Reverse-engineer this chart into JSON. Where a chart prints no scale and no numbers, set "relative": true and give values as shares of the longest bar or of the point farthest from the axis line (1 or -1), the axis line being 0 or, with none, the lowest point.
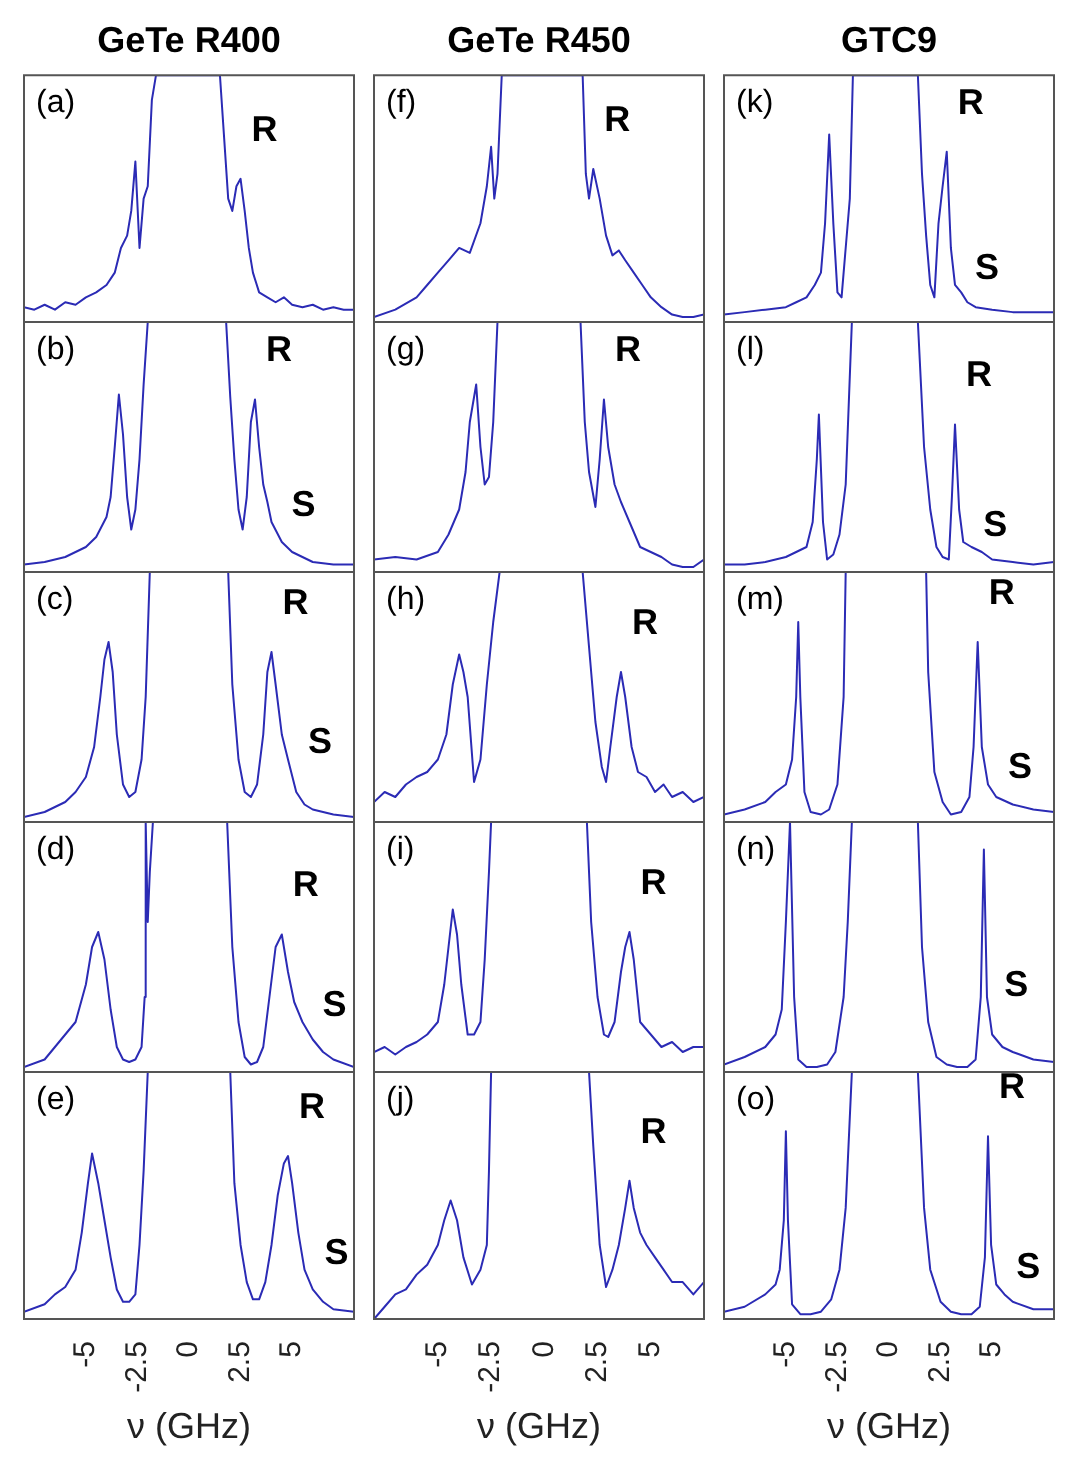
{
  "chart_data": [
    {
      "type": "line",
      "title": "GeTe R400",
      "relative": true,
      "tick_labels": false,
      "color": "#2b2bb5",
      "xlim": [
        -8,
        8
      ],
      "xticks": [
        -5,
        -2.5,
        0,
        2.5,
        5
      ],
      "x": [
        -8,
        -7.5,
        -7,
        -6.5,
        -6,
        -5.5,
        -5,
        -4.5,
        -4,
        -3.6,
        -3.3,
        -3,
        -2.8,
        -2.6,
        -2.4,
        -2.2,
        -2,
        -1.8,
        -1.6,
        1.5,
        1.7,
        1.9,
        2.1,
        2.3,
        2.5,
        2.7,
        2.9,
        3.1,
        3.4,
        3.8,
        4.2,
        4.6,
        5,
        5.5,
        6,
        6.5,
        7,
        7.5,
        8
      ],
      "values": [
        0.06,
        0.05,
        0.07,
        0.05,
        0.08,
        0.07,
        0.1,
        0.12,
        0.15,
        0.2,
        0.3,
        0.35,
        0.45,
        0.65,
        0.3,
        0.5,
        0.55,
        0.9,
        1,
        1,
        0.75,
        0.5,
        0.45,
        0.55,
        0.58,
        0.45,
        0.3,
        0.2,
        0.12,
        0.1,
        0.08,
        0.1,
        0.07,
        0.06,
        0.07,
        0.05,
        0.06,
        0.05,
        0.05
      ],
      "annotations": [
        "(a)",
        {
          "text": "R",
          "x": 2.5,
          "y": 0.58
        }
      ]
    },
    {
      "type": "line",
      "relative": true,
      "tick_labels": false,
      "color": "#2b2bb5",
      "xlim": [
        -8,
        8
      ],
      "xticks": [
        -5,
        -2.5,
        0,
        2.5,
        5
      ],
      "x": [
        -8,
        -7,
        -6,
        -5.5,
        -5,
        -4.5,
        -4,
        -3.8,
        -3.6,
        -3.4,
        -3.2,
        -3,
        -2.8,
        -2.6,
        -2.4,
        -2.2,
        -2,
        1.8,
        2,
        2.2,
        2.4,
        2.6,
        2.8,
        3,
        3.2,
        3.4,
        3.6,
        3.8,
        4,
        4.5,
        5,
        5.5,
        6,
        7,
        8
      ],
      "values": [
        0.03,
        0.04,
        0.06,
        0.08,
        0.1,
        0.14,
        0.22,
        0.3,
        0.5,
        0.71,
        0.55,
        0.3,
        0.17,
        0.25,
        0.45,
        0.75,
        1,
        1,
        0.7,
        0.45,
        0.25,
        0.17,
        0.3,
        0.6,
        0.69,
        0.5,
        0.35,
        0.28,
        0.2,
        0.12,
        0.08,
        0.06,
        0.04,
        0.03,
        0.03
      ],
      "annotations": [
        "(b)",
        {
          "text": "R",
          "x": 3.2,
          "y": 0.69
        },
        {
          "text": "S",
          "x": 4,
          "y": 0.2
        }
      ]
    },
    {
      "type": "line",
      "relative": true,
      "tick_labels": false,
      "color": "#2b2bb5",
      "xlim": [
        -8,
        8
      ],
      "xticks": [
        -5,
        -2.5,
        0,
        2.5,
        5
      ],
      "x": [
        -8,
        -7,
        -6,
        -5.5,
        -5,
        -4.6,
        -4.3,
        -4.1,
        -3.9,
        -3.7,
        -3.5,
        -3.2,
        -2.9,
        -2.6,
        -2.3,
        -2.1,
        -1.9,
        1.9,
        2.1,
        2.4,
        2.7,
        3,
        3.3,
        3.6,
        3.8,
        4,
        4.2,
        4.5,
        4.8,
        5.2,
        5.6,
        6,
        7,
        8
      ],
      "values": [
        0.02,
        0.04,
        0.08,
        0.12,
        0.18,
        0.3,
        0.5,
        0.65,
        0.72,
        0.6,
        0.35,
        0.15,
        0.1,
        0.12,
        0.25,
        0.5,
        1,
        1,
        0.55,
        0.25,
        0.12,
        0.1,
        0.15,
        0.35,
        0.6,
        0.68,
        0.55,
        0.35,
        0.25,
        0.12,
        0.07,
        0.05,
        0.03,
        0.02
      ],
      "annotations": [
        "(c)",
        {
          "text": "R",
          "x": 4,
          "y": 0.68
        },
        {
          "text": "S",
          "x": 4.8,
          "y": 0.25
        }
      ]
    },
    {
      "type": "line",
      "relative": true,
      "tick_labels": false,
      "color": "#2b2bb5",
      "xlim": [
        -8,
        8
      ],
      "xticks": [
        -5,
        -2.5,
        0,
        2.5,
        5
      ],
      "x": [
        -8,
        -7,
        -6.5,
        -6,
        -5.5,
        -5,
        -4.7,
        -4.4,
        -4.1,
        -3.8,
        -3.5,
        -3.2,
        -2.9,
        -2.6,
        -2.3,
        -2.15,
        -2.1,
        -2,
        -1.9,
        -1.75,
        1.85,
        2.1,
        2.4,
        2.7,
        3,
        3.3,
        3.6,
        3.9,
        4.2,
        4.5,
        4.8,
        5.1,
        5.5,
        6,
        6.5,
        7,
        8
      ],
      "values": [
        0.02,
        0.05,
        0.1,
        0.15,
        0.2,
        0.35,
        0.5,
        0.56,
        0.45,
        0.25,
        0.1,
        0.05,
        0.04,
        0.05,
        0.1,
        0.3,
        1,
        0.6,
        0.8,
        1,
        1,
        0.5,
        0.2,
        0.06,
        0.03,
        0.04,
        0.1,
        0.3,
        0.5,
        0.55,
        0.4,
        0.28,
        0.2,
        0.13,
        0.08,
        0.05,
        0.02
      ],
      "annotations": [
        "(d)",
        {
          "text": "R",
          "x": 4.5,
          "y": 0.55
        },
        {
          "text": "S",
          "x": 5.5,
          "y": 0.2
        }
      ]
    },
    {
      "type": "line",
      "relative": true,
      "tick_labels": "x",
      "xlabel": "ν (GHz)",
      "color": "#2b2bb5",
      "xlim": [
        -8,
        8
      ],
      "xticks": [
        -5,
        -2.5,
        0,
        2.5,
        5
      ],
      "x": [
        -8,
        -7,
        -6.5,
        -6,
        -5.5,
        -5.2,
        -4.9,
        -4.7,
        -4.4,
        -4.1,
        -3.8,
        -3.5,
        -3.2,
        -2.9,
        -2.6,
        -2.4,
        -2.2,
        -2,
        2,
        2.2,
        2.5,
        2.8,
        3.1,
        3.4,
        3.7,
        4,
        4.3,
        4.6,
        4.8,
        5,
        5.3,
        5.6,
        6,
        6.5,
        7,
        8
      ],
      "values": [
        0.03,
        0.06,
        0.1,
        0.13,
        0.2,
        0.35,
        0.55,
        0.67,
        0.55,
        0.4,
        0.25,
        0.12,
        0.07,
        0.07,
        0.1,
        0.3,
        0.6,
        1,
        1,
        0.55,
        0.3,
        0.15,
        0.08,
        0.08,
        0.15,
        0.3,
        0.5,
        0.63,
        0.66,
        0.55,
        0.35,
        0.2,
        0.12,
        0.07,
        0.04,
        0.03
      ],
      "annotations": [
        "(e)",
        {
          "text": "R",
          "x": 4.8,
          "y": 0.66
        },
        {
          "text": "S",
          "x": 5.6,
          "y": 0.2
        }
      ]
    },
    {
      "type": "line",
      "title": "GeTe R450",
      "relative": true,
      "tick_labels": false,
      "color": "#2b2bb5",
      "xlim": [
        -8,
        7.5
      ],
      "xticks": [
        -5,
        -2.5,
        0,
        2.5,
        5
      ],
      "x": [
        -8,
        -7,
        -6,
        -5.5,
        -5,
        -4.5,
        -4,
        -3.5,
        -3,
        -2.7,
        -2.5,
        -2.35,
        -2.2,
        -2,
        1.8,
        1.95,
        2.1,
        2.3,
        2.6,
        2.9,
        3.2,
        3.5,
        3.8,
        4.2,
        4.6,
        5,
        5.5,
        6,
        6.5,
        7,
        7.5
      ],
      "values": [
        0.02,
        0.05,
        0.1,
        0.15,
        0.2,
        0.25,
        0.3,
        0.28,
        0.4,
        0.55,
        0.71,
        0.5,
        0.6,
        1,
        1,
        0.6,
        0.5,
        0.62,
        0.5,
        0.35,
        0.27,
        0.29,
        0.25,
        0.2,
        0.15,
        0.1,
        0.06,
        0.03,
        0.02,
        0.02,
        0.03
      ],
      "annotations": [
        "(f)",
        {
          "text": "R",
          "x": 2.3,
          "y": 0.62
        }
      ]
    },
    {
      "type": "line",
      "relative": true,
      "tick_labels": false,
      "color": "#2b2bb5",
      "xlim": [
        -8,
        7.5
      ],
      "xticks": [
        -5,
        -2.5,
        0,
        2.5,
        5
      ],
      "x": [
        -8,
        -7,
        -6,
        -5,
        -4.5,
        -4,
        -3.7,
        -3.5,
        -3.2,
        -3,
        -2.8,
        -2.6,
        -2.4,
        -2.2,
        1.7,
        1.9,
        2.1,
        2.4,
        2.6,
        2.8,
        3,
        3.3,
        3.6,
        4,
        4.5,
        5,
        5.5,
        6,
        6.5,
        7,
        7.5
      ],
      "values": [
        0.05,
        0.06,
        0.05,
        0.08,
        0.15,
        0.25,
        0.4,
        0.6,
        0.75,
        0.5,
        0.35,
        0.38,
        0.6,
        1,
        1,
        0.6,
        0.4,
        0.26,
        0.45,
        0.69,
        0.5,
        0.35,
        0.28,
        0.2,
        0.1,
        0.08,
        0.06,
        0.03,
        0.02,
        0.02,
        0.05
      ],
      "annotations": [
        "(g)",
        {
          "text": "R",
          "x": 2.8,
          "y": 0.69
        }
      ]
    },
    {
      "type": "line",
      "relative": true,
      "tick_labels": false,
      "color": "#2b2bb5",
      "xlim": [
        -8,
        7.5
      ],
      "xticks": [
        -5,
        -2.5,
        0,
        2.5,
        5
      ],
      "x": [
        -8,
        -7.5,
        -7,
        -6.5,
        -6,
        -5.5,
        -5,
        -4.6,
        -4.3,
        -4,
        -3.8,
        -3.6,
        -3.3,
        -3,
        -2.7,
        -2.4,
        -2.1,
        1.8,
        2.1,
        2.4,
        2.7,
        2.9,
        3.1,
        3.4,
        3.6,
        3.8,
        4.1,
        4.4,
        4.8,
        5.2,
        5.6,
        6,
        6.5,
        7,
        7.5
      ],
      "values": [
        0.08,
        0.12,
        0.1,
        0.15,
        0.18,
        0.2,
        0.25,
        0.35,
        0.55,
        0.67,
        0.6,
        0.5,
        0.16,
        0.25,
        0.55,
        0.8,
        1,
        1,
        0.7,
        0.4,
        0.22,
        0.16,
        0.3,
        0.5,
        0.6,
        0.5,
        0.3,
        0.2,
        0.18,
        0.12,
        0.15,
        0.1,
        0.12,
        0.08,
        0.1
      ],
      "annotations": [
        "(h)",
        {
          "text": "R",
          "x": 3.6,
          "y": 0.6
        }
      ]
    },
    {
      "type": "line",
      "relative": true,
      "tick_labels": false,
      "color": "#2b2bb5",
      "xlim": [
        -8,
        7.5
      ],
      "xticks": [
        -5,
        -2.5,
        0,
        2.5,
        5
      ],
      "x": [
        -8,
        -7.5,
        -7,
        -6.5,
        -6,
        -5.5,
        -5,
        -4.7,
        -4.5,
        -4.3,
        -4.1,
        -3.9,
        -3.6,
        -3.3,
        -3,
        -2.8,
        -2.6,
        -2.5,
        2,
        2.2,
        2.5,
        2.8,
        3,
        3.3,
        3.6,
        3.8,
        4,
        4.2,
        4.5,
        5,
        5.5,
        6,
        6.5,
        7,
        7.5
      ],
      "values": [
        0.08,
        0.1,
        0.07,
        0.1,
        0.12,
        0.15,
        0.2,
        0.35,
        0.5,
        0.65,
        0.55,
        0.35,
        0.15,
        0.15,
        0.2,
        0.45,
        0.8,
        1,
        1,
        0.6,
        0.3,
        0.15,
        0.14,
        0.2,
        0.4,
        0.5,
        0.56,
        0.45,
        0.2,
        0.15,
        0.1,
        0.12,
        0.08,
        0.1,
        0.1
      ],
      "annotations": [
        "(i)",
        {
          "text": "R",
          "x": 4,
          "y": 0.56
        }
      ]
    },
    {
      "type": "line",
      "relative": true,
      "tick_labels": "x",
      "xlabel": "ν (GHz)",
      "color": "#2b2bb5",
      "xlim": [
        -8,
        7.5
      ],
      "xticks": [
        -5,
        -2.5,
        0,
        2.5,
        5
      ],
      "x": [
        -8,
        -7.5,
        -7,
        -6.5,
        -6,
        -5.5,
        -5,
        -4.7,
        -4.4,
        -4.1,
        -3.8,
        -3.4,
        -3,
        -2.7,
        -2.6,
        -2.5,
        2.1,
        2.3,
        2.6,
        2.9,
        3.2,
        3.5,
        3.8,
        4,
        4.2,
        4.5,
        4.8,
        5.2,
        5.6,
        6,
        6.5,
        7,
        7.5
      ],
      "values": [
        0,
        0.05,
        0.1,
        0.12,
        0.18,
        0.22,
        0.3,
        0.4,
        0.48,
        0.4,
        0.25,
        0.14,
        0.2,
        0.3,
        0.6,
        1,
        1,
        0.7,
        0.3,
        0.13,
        0.2,
        0.3,
        0.45,
        0.56,
        0.45,
        0.35,
        0.3,
        0.25,
        0.2,
        0.15,
        0.15,
        0.1,
        0.15
      ],
      "annotations": [
        "(j)",
        {
          "text": "R",
          "x": 4,
          "y": 0.56
        }
      ]
    },
    {
      "type": "line",
      "title": "GTC9",
      "relative": true,
      "tick_labels": false,
      "color": "#2b2bb5",
      "xlim": [
        -8,
        8
      ],
      "xticks": [
        -5,
        -2.5,
        0,
        2.5,
        5
      ],
      "x": [
        -8,
        -7,
        -6,
        -5,
        -4.5,
        -4,
        -3.6,
        -3.3,
        -3.1,
        -2.9,
        -2.7,
        -2.5,
        -2.3,
        -2.1,
        -1.9,
        -1.75,
        1.4,
        1.6,
        1.8,
        2,
        2.2,
        2.4,
        2.6,
        2.8,
        3,
        3.2,
        3.5,
        3.8,
        4.2,
        5,
        6,
        7,
        8
      ],
      "values": [
        0.03,
        0.04,
        0.05,
        0.06,
        0.08,
        0.1,
        0.15,
        0.2,
        0.4,
        0.76,
        0.4,
        0.12,
        0.1,
        0.3,
        0.5,
        1,
        1,
        0.6,
        0.35,
        0.15,
        0.1,
        0.4,
        0.55,
        0.69,
        0.3,
        0.15,
        0.12,
        0.08,
        0.06,
        0.05,
        0.04,
        0.04,
        0.04
      ],
      "annotations": [
        "(k)",
        {
          "text": "R",
          "x": 2.8,
          "y": 0.69
        },
        {
          "text": "S",
          "x": 3.2,
          "y": 0.15
        }
      ]
    },
    {
      "type": "line",
      "relative": true,
      "tick_labels": false,
      "color": "#2b2bb5",
      "xlim": [
        -8,
        8
      ],
      "xticks": [
        -5,
        -2.5,
        0,
        2.5,
        5
      ],
      "x": [
        -8,
        -7,
        -6,
        -5,
        -4.5,
        -4,
        -3.7,
        -3.5,
        -3.4,
        -3.2,
        -3,
        -2.7,
        -2.4,
        -2.1,
        -1.8,
        1.4,
        1.7,
        2,
        2.3,
        2.6,
        2.9,
        3.05,
        3.2,
        3.4,
        3.6,
        4,
        4.5,
        5,
        6,
        7,
        8
      ],
      "values": [
        0.03,
        0.03,
        0.04,
        0.06,
        0.08,
        0.1,
        0.2,
        0.45,
        0.63,
        0.2,
        0.05,
        0.07,
        0.15,
        0.35,
        1,
        1,
        0.5,
        0.25,
        0.1,
        0.06,
        0.05,
        0.3,
        0.59,
        0.25,
        0.12,
        0.1,
        0.08,
        0.05,
        0.04,
        0.03,
        0.04
      ],
      "annotations": [
        "(l)",
        {
          "text": "R",
          "x": 3.2,
          "y": 0.59
        },
        {
          "text": "S",
          "x": 3.6,
          "y": 0.12
        }
      ]
    },
    {
      "type": "line",
      "relative": true,
      "tick_labels": false,
      "color": "#2b2bb5",
      "xlim": [
        -8,
        8
      ],
      "xticks": [
        -5,
        -2.5,
        0,
        2.5,
        5
      ],
      "x": [
        -8,
        -7,
        -6,
        -5.5,
        -5,
        -4.7,
        -4.5,
        -4.4,
        -4.3,
        -4.1,
        -3.8,
        -3.3,
        -2.9,
        -2.5,
        -2.2,
        -2.1,
        1.8,
        1.9,
        2.2,
        2.6,
        3,
        3.5,
        3.9,
        4.1,
        4.3,
        4.5,
        4.8,
        5.2,
        6,
        7,
        8
      ],
      "values": [
        0.03,
        0.05,
        0.08,
        0.12,
        0.15,
        0.25,
        0.5,
        0.8,
        0.5,
        0.12,
        0.04,
        0.03,
        0.05,
        0.15,
        0.5,
        1,
        1,
        0.6,
        0.2,
        0.08,
        0.03,
        0.04,
        0.1,
        0.3,
        0.72,
        0.3,
        0.15,
        0.1,
        0.07,
        0.05,
        0.04
      ],
      "annotations": [
        "(m)",
        {
          "text": "R",
          "x": 4.3,
          "y": 0.72
        },
        {
          "text": "S",
          "x": 4.8,
          "y": 0.15
        }
      ]
    },
    {
      "type": "line",
      "relative": true,
      "tick_labels": false,
      "color": "#2b2bb5",
      "xlim": [
        -8,
        8
      ],
      "xticks": [
        -5,
        -2.5,
        0,
        2.5,
        5
      ],
      "x": [
        -8,
        -7,
        -6,
        -5.5,
        -5.2,
        -5,
        -4.8,
        -4.6,
        -4.4,
        -4,
        -3.5,
        -3,
        -2.6,
        -2.2,
        -2,
        -1.8,
        1.4,
        1.6,
        1.9,
        2.3,
        2.8,
        3.3,
        3.8,
        4.2,
        4.45,
        4.6,
        4.75,
        5,
        5.5,
        6,
        7,
        8
      ],
      "values": [
        0.03,
        0.06,
        0.1,
        0.15,
        0.25,
        0.6,
        1,
        0.3,
        0.05,
        0.02,
        0.02,
        0.03,
        0.08,
        0.3,
        0.6,
        1,
        1,
        0.5,
        0.2,
        0.06,
        0.03,
        0.02,
        0.02,
        0.05,
        0.3,
        0.89,
        0.3,
        0.15,
        0.1,
        0.08,
        0.05,
        0.04
      ],
      "annotations": [
        "(n)",
        {
          "text": "S",
          "x": 5,
          "y": 0.15
        }
      ]
    },
    {
      "type": "line",
      "relative": true,
      "tick_labels": "x",
      "xlabel": "ν (GHz)",
      "color": "#2b2bb5",
      "xlim": [
        -8,
        8
      ],
      "xticks": [
        -5,
        -2.5,
        0,
        2.5,
        5
      ],
      "x": [
        -8,
        -7,
        -6,
        -5.5,
        -5.3,
        -5.1,
        -5,
        -4.9,
        -4.7,
        -4.3,
        -3.8,
        -3.3,
        -2.8,
        -2.4,
        -2.1,
        -1.8,
        1.4,
        1.7,
        2,
        2.5,
        3,
        3.5,
        4,
        4.4,
        4.65,
        4.8,
        4.95,
        5.2,
        5.6,
        6,
        7,
        8
      ],
      "values": [
        0.03,
        0.05,
        0.1,
        0.14,
        0.2,
        0.4,
        0.76,
        0.4,
        0.06,
        0.02,
        0.02,
        0.03,
        0.08,
        0.2,
        0.45,
        1,
        1,
        0.45,
        0.2,
        0.07,
        0.03,
        0.02,
        0.02,
        0.05,
        0.25,
        0.74,
        0.3,
        0.14,
        0.1,
        0.07,
        0.04,
        0.04
      ],
      "annotations": [
        "(o)",
        {
          "text": "R",
          "x": 4.8,
          "y": 0.74
        },
        {
          "text": "S",
          "x": 5.2,
          "y": 0.14
        }
      ]
    }
  ]
}
